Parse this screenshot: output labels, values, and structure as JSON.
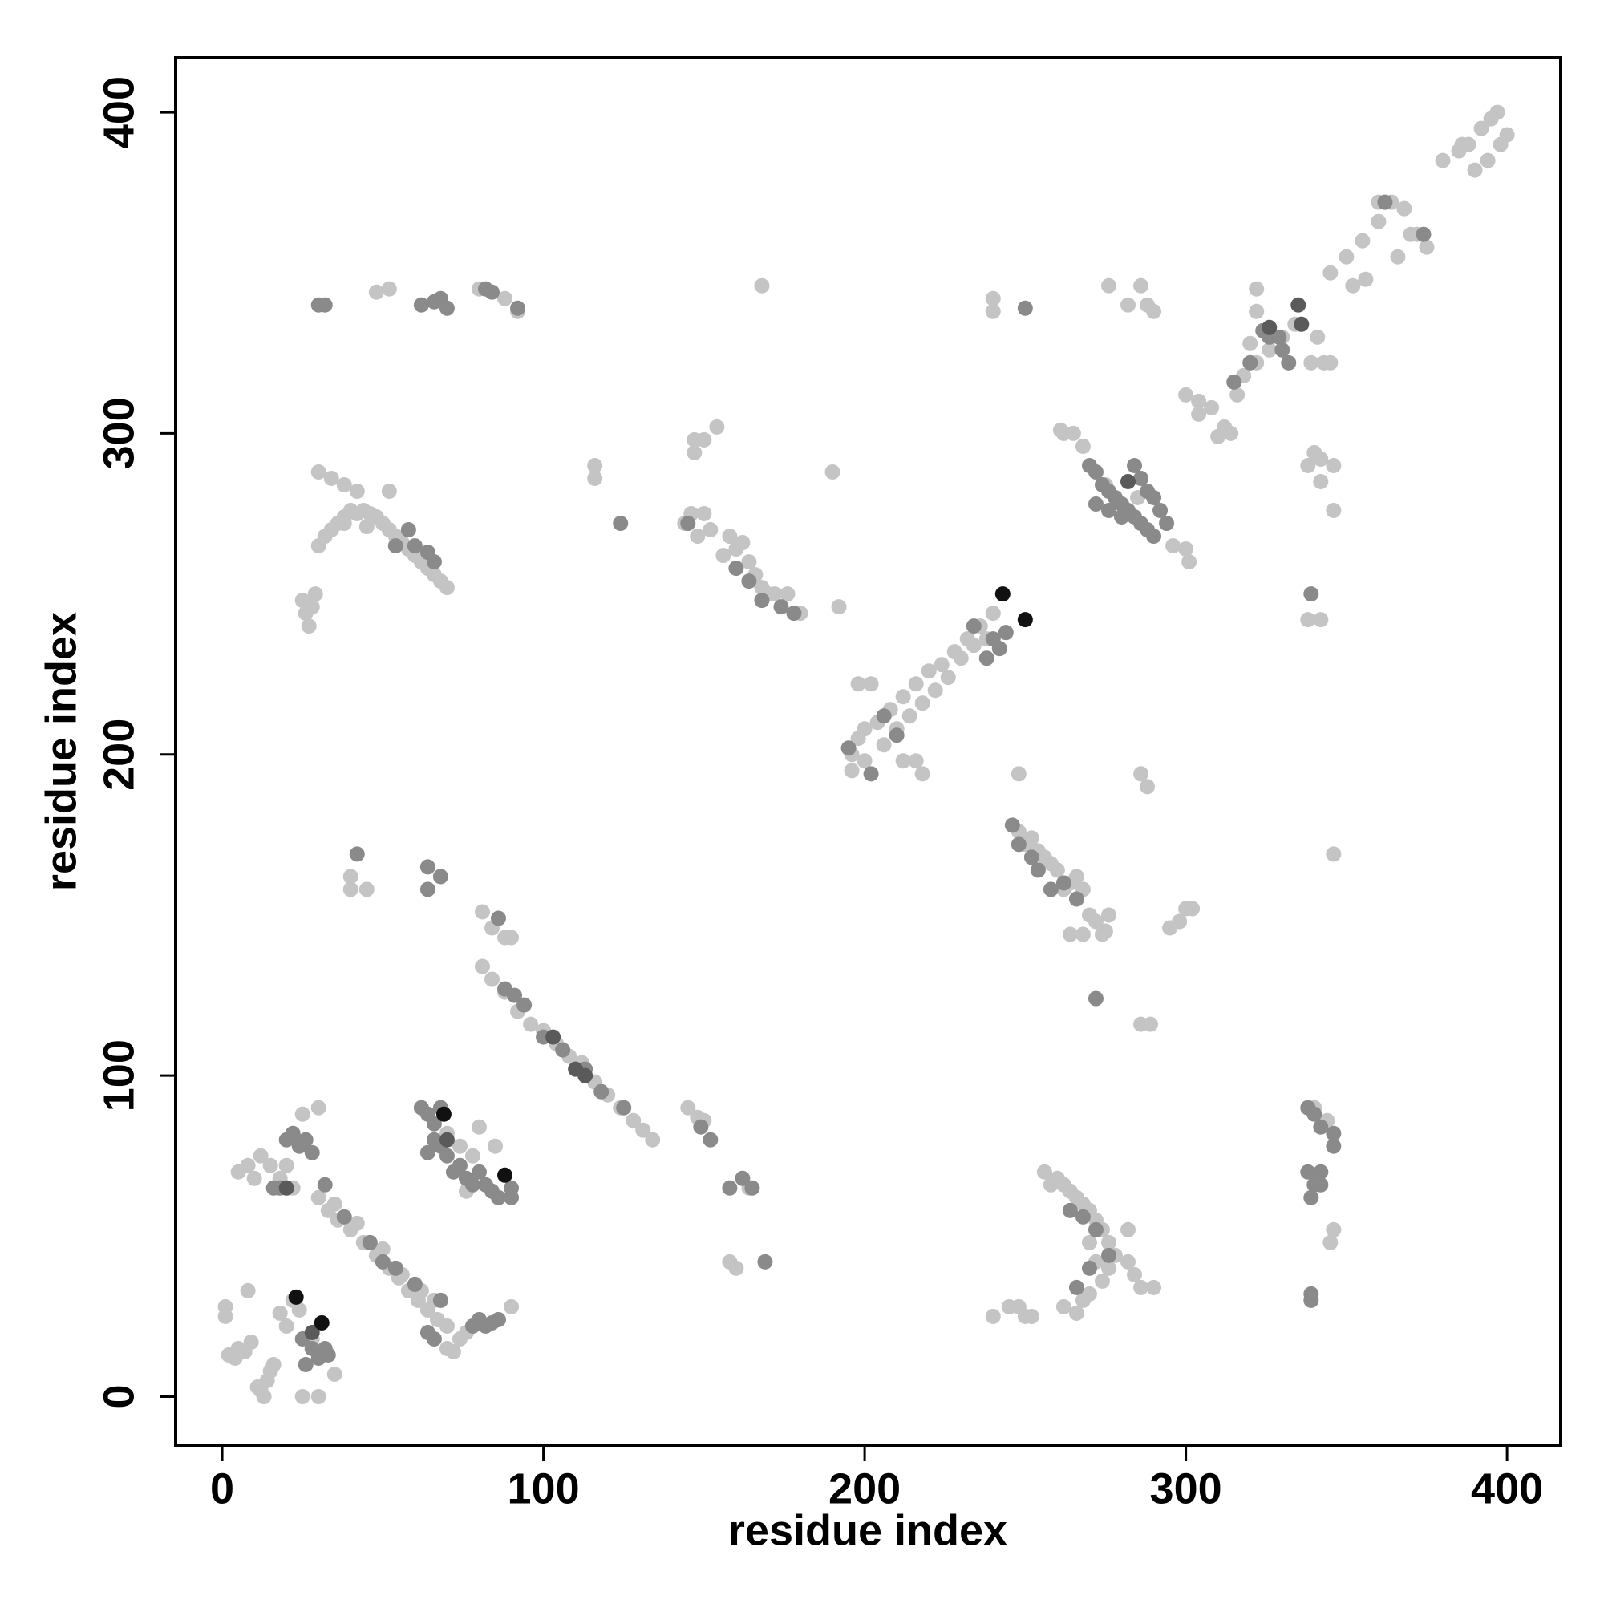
{
  "chart_data": {
    "type": "scatter",
    "xlabel": "residue index",
    "ylabel": "residue index",
    "xlim": [
      -14.5,
      416.7
    ],
    "ylim": [
      -15.1,
      417
    ],
    "xticks": [
      0,
      100,
      200,
      300,
      400
    ],
    "yticks": [
      0,
      100,
      200,
      300,
      400
    ],
    "grid": false,
    "series": [
      {
        "color": "#c4c4c4",
        "x": [
          1,
          1,
          2,
          4,
          5,
          7,
          9,
          11,
          12,
          13,
          14,
          15,
          16,
          8,
          25,
          30,
          18,
          20,
          24,
          22,
          28,
          35,
          5,
          8,
          10,
          12,
          15,
          18,
          20,
          25,
          30,
          22,
          30,
          33,
          36,
          40,
          44,
          48,
          52,
          55,
          58,
          61,
          64,
          67,
          70,
          35,
          42,
          50,
          56,
          62,
          66,
          72,
          74,
          76,
          70,
          90,
          70,
          74,
          78,
          80,
          85,
          76,
          81,
          84,
          88,
          90,
          81,
          84,
          88,
          92,
          96,
          100,
          104,
          108,
          112,
          116,
          120,
          124,
          128,
          131,
          134,
          145,
          148,
          150,
          158,
          160,
          164,
          25,
          26,
          27,
          28,
          29,
          30,
          32,
          34,
          36,
          38,
          40,
          42,
          44,
          46,
          48,
          50,
          52,
          54,
          56,
          58,
          60,
          62,
          64,
          66,
          68,
          70,
          30,
          34,
          38,
          42,
          52,
          38,
          45,
          48,
          52,
          80,
          88,
          92,
          40,
          40,
          45,
          147,
          147,
          150,
          154,
          144,
          146,
          148,
          150,
          152,
          156,
          158,
          160,
          162,
          164,
          166,
          168,
          170,
          172,
          176,
          180,
          116,
          116,
          168,
          190,
          192,
          196,
          198,
          200,
          204,
          208,
          212,
          216,
          220,
          224,
          228,
          232,
          236,
          240,
          196,
          200,
          206,
          210,
          214,
          218,
          222,
          226,
          230,
          234,
          238,
          198,
          202,
          212,
          216,
          218,
          248,
          261,
          265,
          268,
          296,
          300,
          301,
          275,
          285,
          300,
          304,
          308,
          312,
          310,
          314,
          318,
          322,
          326,
          330,
          334,
          322,
          322,
          320,
          316,
          304,
          341,
          343,
          345,
          339,
          345,
          350,
          355,
          360,
          364,
          368,
          372,
          375,
          370,
          366,
          356,
          352,
          380,
          385,
          388,
          392,
          395,
          397,
          390,
          394,
          398,
          400,
          386,
          360,
          240,
          240,
          262,
          276,
          282,
          286,
          288,
          290,
          338,
          340,
          342,
          342,
          346,
          346,
          338,
          342,
          346,
          340,
          344,
          345,
          346,
          248,
          250,
          254,
          256,
          260,
          264,
          266,
          268,
          270,
          272,
          275,
          276,
          264,
          268,
          252,
          258,
          262,
          274,
          288,
          286,
          289,
          286,
          295,
          298,
          300,
          302,
          240,
          245,
          248,
          250,
          252,
          256,
          260,
          262,
          264,
          266,
          268,
          270,
          272,
          274,
          276,
          278,
          276,
          274,
          270,
          268,
          266,
          262,
          282,
          284,
          286,
          290,
          282,
          258,
          270,
          272
        ],
        "values": [
          28,
          25,
          13,
          12,
          15,
          14,
          17,
          3,
          2,
          0,
          5,
          8,
          10,
          33,
          0,
          0,
          26,
          22,
          27,
          30,
          18,
          7,
          70,
          72,
          68,
          75,
          72,
          68,
          72,
          88,
          90,
          65,
          62,
          58,
          55,
          52,
          48,
          44,
          40,
          37,
          33,
          30,
          27,
          24,
          22,
          60,
          54,
          46,
          38,
          33,
          30,
          14,
          18,
          20,
          15,
          28,
          82,
          78,
          75,
          84,
          78,
          64,
          151,
          146,
          143,
          143,
          134,
          130,
          126,
          120,
          116,
          114,
          110,
          106,
          104,
          98,
          94,
          90,
          86,
          83,
          80,
          90,
          87,
          86,
          42,
          40,
          65,
          248,
          244,
          240,
          246,
          250,
          265,
          268,
          270,
          272,
          274,
          276,
          275,
          276,
          275,
          274,
          272,
          270,
          268,
          266,
          264,
          262,
          260,
          258,
          256,
          254,
          252,
          288,
          286,
          284,
          282,
          282,
          272,
          271,
          344,
          345,
          345,
          342,
          338,
          162,
          158,
          158,
          298,
          294,
          298,
          302,
          272,
          275,
          268,
          275,
          270,
          262,
          268,
          264,
          266,
          260,
          256,
          252,
          250,
          250,
          250,
          244,
          290,
          286,
          346,
          288,
          246,
          200,
          205,
          208,
          210,
          214,
          218,
          222,
          226,
          228,
          232,
          236,
          240,
          244,
          195,
          198,
          203,
          208,
          212,
          216,
          220,
          224,
          230,
          234,
          236,
          222,
          222,
          198,
          198,
          194,
          194,
          301,
          300,
          296,
          265,
          264,
          260,
          284,
          280,
          312,
          310,
          308,
          302,
          299,
          300,
          318,
          322,
          326,
          330,
          334,
          345,
          338,
          328,
          312,
          306,
          330,
          322,
          322,
          322,
          350,
          355,
          360,
          366,
          372,
          370,
          362,
          358,
          362,
          355,
          348,
          346,
          385,
          388,
          390,
          395,
          398,
          400,
          382,
          385,
          390,
          393,
          390,
          372,
          342,
          338,
          300,
          346,
          340,
          346,
          340,
          338,
          290,
          294,
          292,
          285,
          290,
          276,
          242,
          242,
          169,
          90,
          86,
          48,
          52,
          176,
          172,
          170,
          168,
          164,
          160,
          162,
          158,
          150,
          148,
          145,
          150,
          144,
          144,
          174,
          166,
          158,
          144,
          190,
          194,
          116,
          116,
          146,
          148,
          152,
          152,
          25,
          28,
          28,
          25,
          25,
          70,
          68,
          66,
          64,
          62,
          60,
          58,
          55,
          52,
          48,
          44,
          40,
          36,
          32,
          30,
          26,
          28,
          42,
          38,
          34,
          34,
          52,
          66,
          48,
          42
        ]
      },
      {
        "color": "#8a8a8a",
        "x": [
          22,
          24,
          26,
          28,
          20,
          18,
          16,
          32,
          38,
          46,
          50,
          54,
          60,
          64,
          68,
          78,
          80,
          82,
          84,
          86,
          66,
          25,
          28,
          30,
          32,
          26,
          33,
          62,
          64,
          66,
          66,
          68,
          70,
          64,
          72,
          74,
          76,
          78,
          80,
          82,
          84,
          86,
          90,
          90,
          68,
          86,
          88,
          91,
          94,
          100,
          106,
          113,
          118,
          125,
          158,
          162,
          165,
          149,
          169,
          152,
          60,
          64,
          66,
          54,
          58,
          30,
          32,
          62,
          66,
          68,
          70,
          82,
          84,
          92,
          42,
          64,
          64,
          68,
          145,
          160,
          164,
          168,
          174,
          178,
          124,
          195,
          202,
          206,
          210,
          234,
          240,
          244,
          238,
          242,
          270,
          272,
          274,
          276,
          278,
          280,
          282,
          284,
          286,
          288,
          290,
          284,
          286,
          288,
          290,
          292,
          294,
          272,
          276,
          280,
          320,
          324,
          326,
          330,
          332,
          315,
          329,
          362,
          374,
          250,
          339,
          338,
          340,
          342,
          346,
          346,
          338,
          340,
          342,
          342,
          339,
          339,
          339,
          246,
          248,
          252,
          254,
          258,
          262,
          266,
          272,
          264,
          268,
          270,
          266,
          276,
          272
        ],
        "values": [
          82,
          78,
          80,
          76,
          80,
          65,
          65,
          66,
          56,
          48,
          42,
          40,
          35,
          20,
          30,
          22,
          24,
          22,
          23,
          24,
          18,
          18,
          15,
          12,
          15,
          10,
          13,
          90,
          88,
          85,
          80,
          78,
          75,
          76,
          70,
          72,
          68,
          66,
          70,
          66,
          64,
          62,
          62,
          65,
          90,
          149,
          127,
          125,
          122,
          112,
          108,
          102,
          95,
          90,
          65,
          68,
          65,
          84,
          42,
          80,
          265,
          263,
          260,
          265,
          270,
          340,
          340,
          340,
          341,
          342,
          339,
          345,
          344,
          339,
          169,
          165,
          158,
          162,
          272,
          258,
          254,
          248,
          246,
          244,
          272,
          202,
          194,
          212,
          206,
          240,
          236,
          238,
          230,
          233,
          290,
          288,
          284,
          282,
          280,
          278,
          276,
          274,
          272,
          270,
          268,
          290,
          286,
          282,
          280,
          276,
          272,
          278,
          276,
          274,
          322,
          332,
          330,
          326,
          322,
          316,
          330,
          372,
          362,
          339,
          250,
          90,
          88,
          84,
          82,
          78,
          70,
          66,
          66,
          70,
          62,
          32,
          30,
          178,
          172,
          168,
          164,
          158,
          160,
          155,
          124,
          58,
          56,
          40,
          34,
          44,
          52
        ]
      },
      {
        "color": "#5a5a5a",
        "x": [
          103,
          110,
          113,
          335,
          336,
          28,
          70,
          282,
          326,
          20
        ],
        "values": [
          112,
          102,
          100,
          340,
          334,
          20,
          80,
          285,
          333,
          65
        ]
      },
      {
        "color": "#111111",
        "x": [
          23,
          31,
          69,
          88,
          243,
          250
        ],
        "values": [
          31,
          23,
          88,
          69,
          250,
          242
        ]
      }
    ]
  }
}
